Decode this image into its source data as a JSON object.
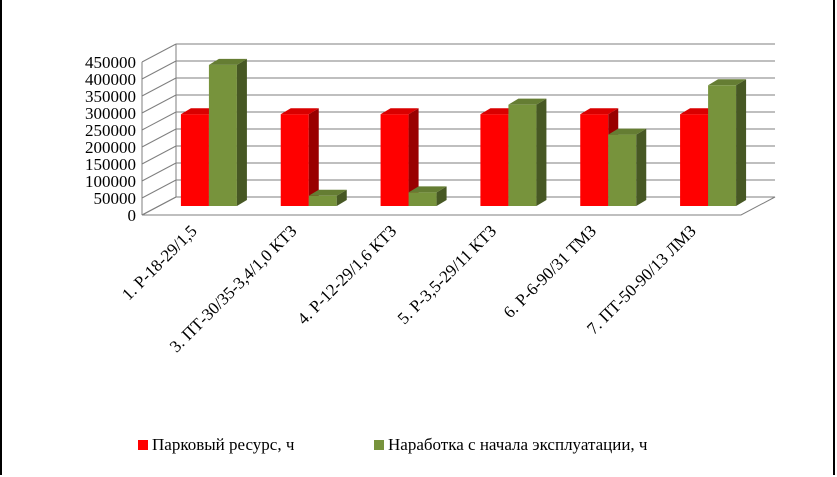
{
  "chart_data": {
    "type": "bar",
    "style": "3d-clustered-column",
    "categories": [
      "1. Р-18-29/1,5",
      "3. ПТ-30/35-3,4/1,0 КТЗ",
      "4. Р-12-29/1,6 КТЗ",
      "5. Р-3,5-29/11 КТЗ",
      "6. Р-6-90/31 ТМЗ",
      "7. ПТ-50-90/13 ЛМЗ"
    ],
    "series": [
      {
        "name": "Парковый ресурс, ч",
        "color": "#ff0000",
        "values": [
          270000,
          270000,
          270000,
          270000,
          270000,
          270000
        ]
      },
      {
        "name": "Наработка с начала эксплуатации, ч",
        "color": "#77933c",
        "values": [
          415000,
          30000,
          40000,
          298000,
          210000,
          355000
        ]
      }
    ],
    "yticks": [
      "0",
      "50000",
      "100000",
      "150000",
      "200000",
      "250000",
      "300000",
      "350000",
      "400000",
      "450000"
    ],
    "ylim": [
      0,
      450000
    ],
    "grid": true,
    "legend_position": "bottom"
  }
}
